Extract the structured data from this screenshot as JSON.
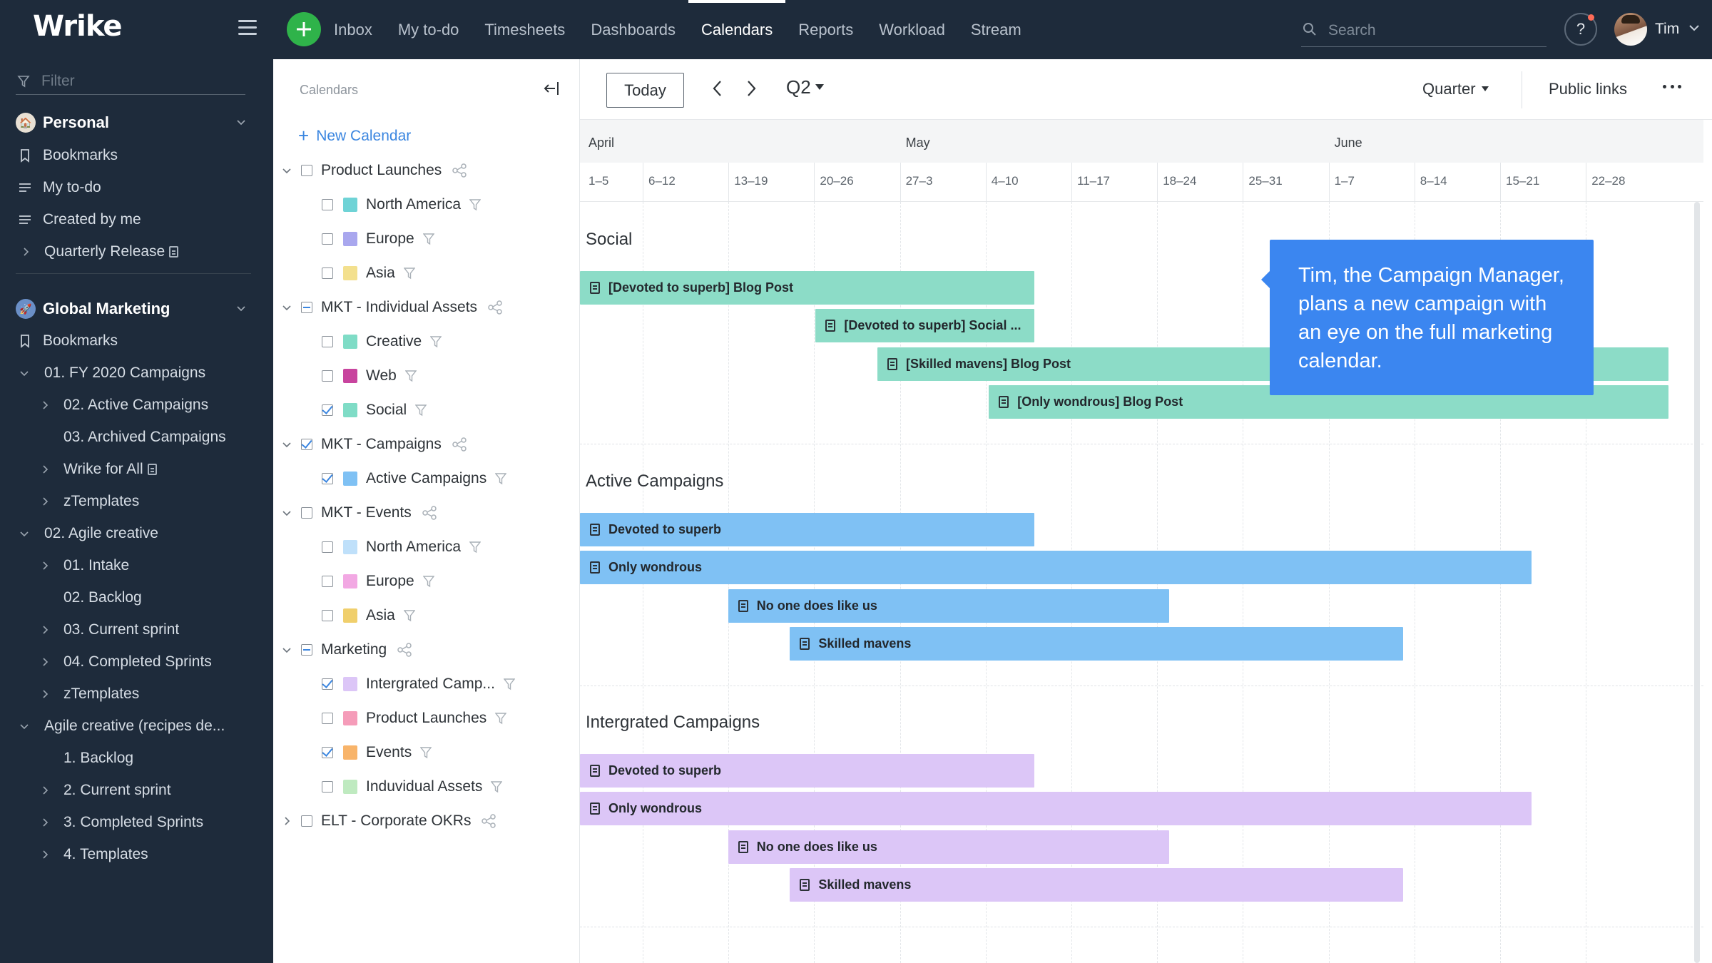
{
  "app": {
    "logo": "Wrike"
  },
  "topnav": {
    "items": [
      "Inbox",
      "My to-do",
      "Timesheets",
      "Dashboards",
      "Calendars",
      "Reports",
      "Workload",
      "Stream"
    ],
    "active": "Calendars",
    "search_placeholder": "Search",
    "help_label": "?",
    "user_name": "Tim"
  },
  "sidebar": {
    "filter_placeholder": "Filter",
    "personal": {
      "label": "Personal",
      "items": [
        "Bookmarks",
        "My to-do",
        "Created by me",
        "Quarterly Release"
      ]
    },
    "global": {
      "label": "Global Marketing",
      "items": [
        "Bookmarks",
        "01. FY 2020 Campaigns",
        "02. Active Campaigns",
        "03. Archived Campaigns",
        "Wrike for All",
        "zTemplates",
        "02. Agile creative",
        "01. Intake",
        "02. Backlog",
        "03. Current sprint",
        "04. Completed Sprints",
        "zTemplates",
        "Agile creative (recipes de...",
        "1. Backlog",
        "2. Current sprint",
        "3. Completed Sprints",
        "4. Templates"
      ]
    }
  },
  "calendars_panel": {
    "title": "Calendars",
    "new_calendar": "New Calendar",
    "groups": [
      {
        "label": "Product Launches",
        "state": "unchecked",
        "children": [
          {
            "label": "North America",
            "color": "#6fd3d6",
            "checked": false
          },
          {
            "label": "Europe",
            "color": "#a9a7ee",
            "checked": false
          },
          {
            "label": "Asia",
            "color": "#f3e08e",
            "checked": false
          }
        ]
      },
      {
        "label": "MKT - Individual Assets",
        "state": "partial",
        "children": [
          {
            "label": "Creative",
            "color": "#7fdcc6",
            "checked": false
          },
          {
            "label": "Web",
            "color": "#c8449e",
            "checked": false
          },
          {
            "label": "Social",
            "color": "#7fdcc6",
            "checked": true
          }
        ]
      },
      {
        "label": "MKT - Campaigns",
        "state": "checked",
        "children": [
          {
            "label": "Active Campaigns",
            "color": "#7fc1f4",
            "checked": true
          }
        ]
      },
      {
        "label": "MKT - Events",
        "state": "unchecked",
        "children": [
          {
            "label": "North America",
            "color": "#bfe0fa",
            "checked": false
          },
          {
            "label": "Europe",
            "color": "#f2a8e3",
            "checked": false
          },
          {
            "label": "Asia",
            "color": "#f0cf6c",
            "checked": false
          }
        ]
      },
      {
        "label": "Marketing",
        "state": "partial",
        "children": [
          {
            "label": "Intergrated Camp...",
            "color": "#dcc6f7",
            "checked": true
          },
          {
            "label": "Product Launches",
            "color": "#f59cb9",
            "checked": false
          },
          {
            "label": "Events",
            "color": "#f8b46a",
            "checked": true
          },
          {
            "label": "Induvidual Assets",
            "color": "#bfeac0",
            "checked": false
          }
        ]
      },
      {
        "label": "ELT - Corporate OKRs",
        "state": "unchecked",
        "children": []
      }
    ]
  },
  "toolbar": {
    "today": "Today",
    "period": "Q2",
    "scale": "Quarter",
    "public_links": "Public links"
  },
  "timeline": {
    "months": [
      "April",
      "May",
      "June"
    ],
    "weeks": [
      "1–5",
      "6–12",
      "13–19",
      "20–26",
      "27–3",
      "4–10",
      "11–17",
      "18–24",
      "25–31",
      "1–7",
      "8–14",
      "15–21",
      "22–28"
    ],
    "sections": [
      {
        "title": "Social",
        "color": "#8cdcc7",
        "bars": [
          {
            "label": "[Devoted to superb] Blog Post",
            "start": 0.0,
            "end": 5.6
          },
          {
            "label": "[Devoted to superb] Social ...",
            "start": 3.05,
            "end": 5.6
          },
          {
            "label": "[Skilled mavens] Blog Post",
            "start": 3.77,
            "end": 13.0
          },
          {
            "label": "[Only wondrous] Blog Post",
            "start": 5.07,
            "end": 13.0
          }
        ]
      },
      {
        "title": "Active Campaigns",
        "color": "#7fc1f4",
        "bars": [
          {
            "label": "Devoted to superb",
            "start": 0.0,
            "end": 5.6
          },
          {
            "label": "Only wondrous",
            "start": 0.0,
            "end": 11.4
          },
          {
            "label": "No one does like us",
            "start": 2.03,
            "end": 7.17
          },
          {
            "label": "Skilled mavens",
            "start": 2.75,
            "end": 9.9
          }
        ]
      },
      {
        "title": "Intergrated Campaigns",
        "color": "#dcc6f7",
        "bars": [
          {
            "label": "Devoted to superb",
            "start": 0.0,
            "end": 5.6
          },
          {
            "label": "Only wondrous",
            "start": 0.0,
            "end": 11.4
          },
          {
            "label": "No one does like us",
            "start": 2.03,
            "end": 7.17
          },
          {
            "label": "Skilled mavens",
            "start": 2.75,
            "end": 9.9
          }
        ]
      }
    ]
  },
  "callout": {
    "text": "Tim, the Campaign Manager, plans a new campaign with an eye on the full marketing calendar."
  }
}
